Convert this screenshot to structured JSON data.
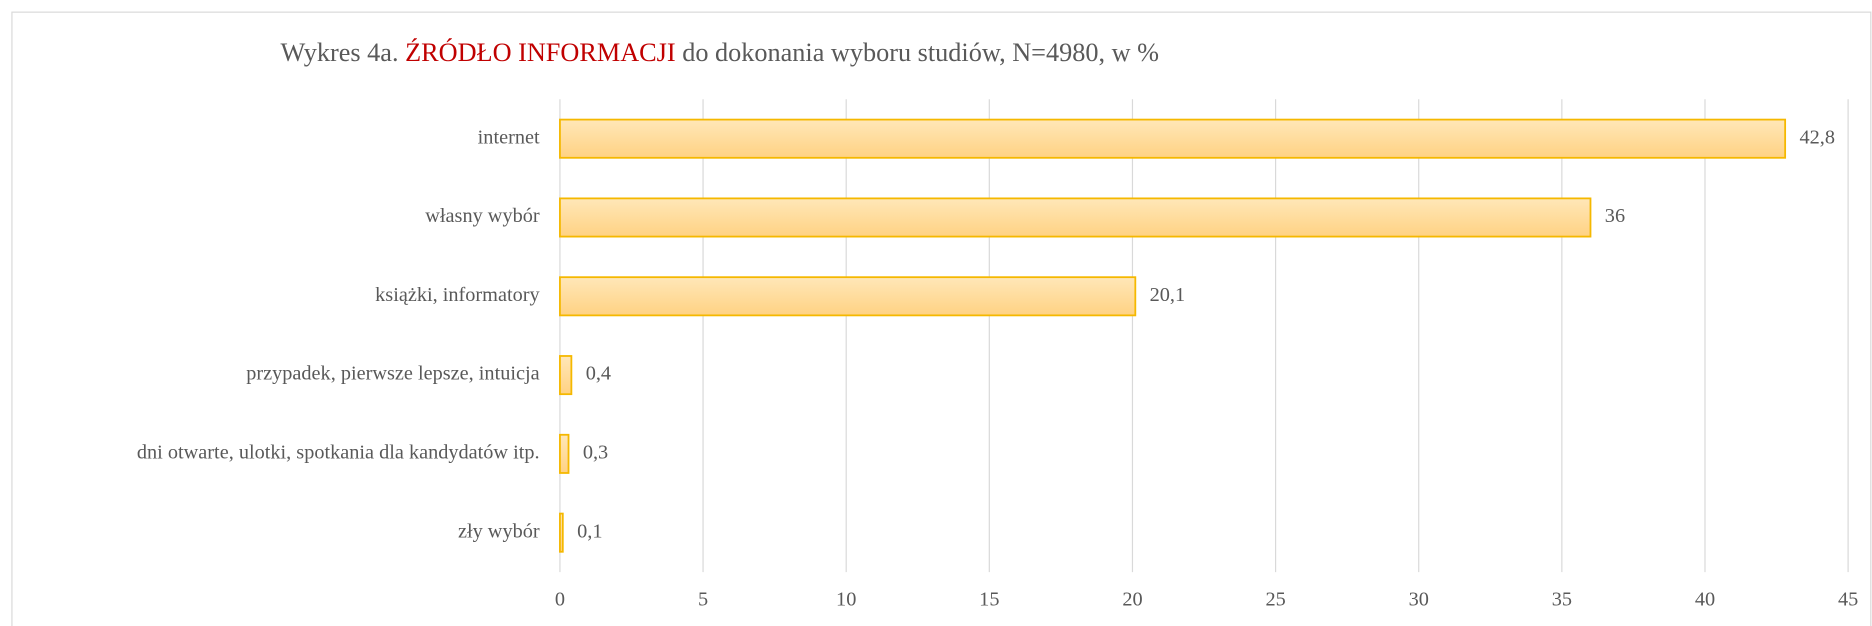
{
  "chart_data": {
    "type": "bar",
    "orientation": "horizontal",
    "title": [
      "Wykres 4a. ",
      "ŹRÓDŁO INFORMACJI",
      " do dokonania wyboru studiów, N=4980, w %"
    ],
    "title_colors": [
      "#595959",
      "#c00000",
      "#595959"
    ],
    "categories": [
      "internet",
      "własny wybór",
      "książki, informatory",
      "przypadek, pierwsze lepsze, intuicja",
      "dni otwarte, ulotki, spotkania dla kandydatów itp.",
      "zły wybór"
    ],
    "values": [
      42.8,
      36,
      20.1,
      0.4,
      0.3,
      0.1
    ],
    "value_labels": [
      "42,8",
      "36",
      "20,1",
      "0,4",
      "0,3",
      "0,1"
    ],
    "color": "#ffd98a",
    "edge_color": "#f5b800",
    "xlim": [
      0,
      45
    ],
    "xticks": [
      0,
      5,
      10,
      15,
      20,
      25,
      30,
      35,
      40,
      45
    ],
    "grid": true
  }
}
